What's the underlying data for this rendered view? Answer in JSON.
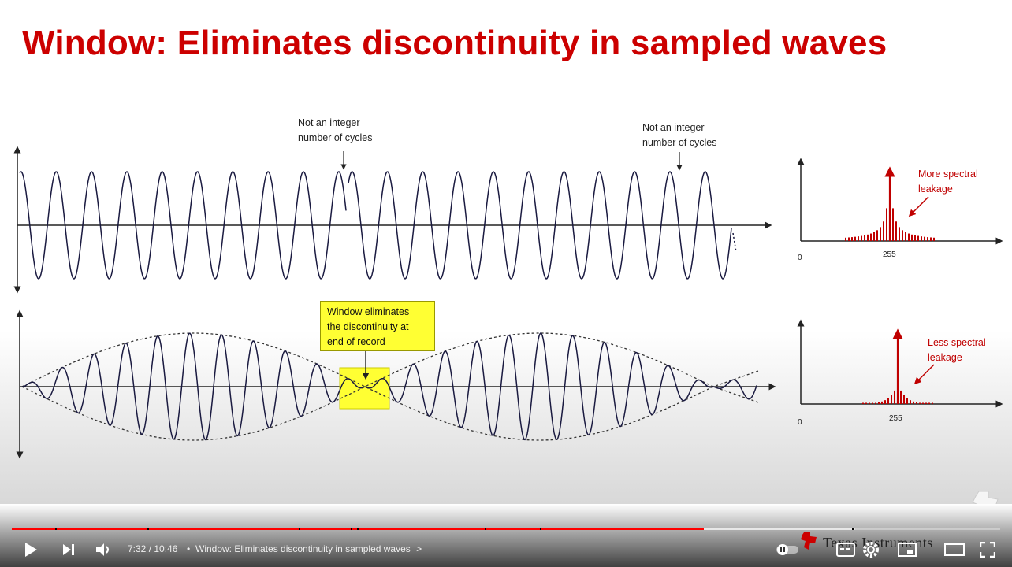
{
  "slide": {
    "title": "Window: Eliminates discontinuity in sampled waves",
    "annotation_top_1": [
      "Not an integer",
      "number of cycles"
    ],
    "annotation_top_2": [
      "Not an integer",
      "number of cycles"
    ],
    "annotation_window": [
      "Window eliminates",
      "the discontinuity at",
      "end of record"
    ],
    "spectrum_top": {
      "label": [
        "More spectral",
        "leakage"
      ],
      "x_origin": "0",
      "x_peak": "255"
    },
    "spectrum_bottom": {
      "label": [
        "Less spectral",
        "leakage"
      ],
      "x_origin": "0",
      "x_peak": "255"
    },
    "brand": "Texas Instruments"
  },
  "player": {
    "time_current": "7:32",
    "time_total": "10:46",
    "time_display": "7:32 / 10:46",
    "chapter_title": "Window: Eliminates discontinuity in sampled waves",
    "chapter_separator": "•",
    "chapter_arrow": ">",
    "progress_played_fraction": 0.7,
    "icons": {
      "play": "play-icon",
      "next": "next-icon",
      "volume": "volume-icon",
      "pause_indicator": "autoplay-toggle-icon",
      "captions": "captions-icon",
      "settings": "gear-icon",
      "miniplayer": "miniplayer-icon",
      "theater": "theater-mode-icon",
      "fullscreen": "fullscreen-icon"
    },
    "accent_color": "#ff0000"
  }
}
